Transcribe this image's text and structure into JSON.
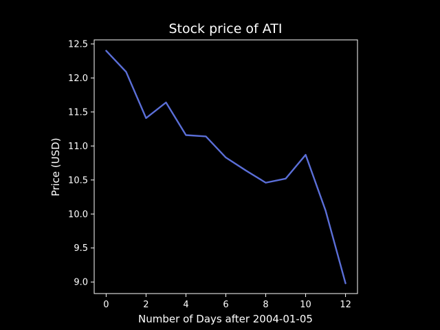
{
  "chart_data": {
    "type": "line",
    "title": "Stock price of ATI",
    "xlabel": "Number of Days after 2004-01-05",
    "ylabel": "Price (USD)",
    "x": [
      0,
      1,
      2,
      3,
      4,
      5,
      6,
      7,
      8,
      9,
      10,
      11,
      12
    ],
    "series": [
      {
        "values": [
          12.4,
          12.09,
          11.41,
          11.64,
          11.16,
          11.14,
          10.83,
          10.64,
          10.46,
          10.52,
          10.87,
          10.05,
          8.98
        ],
        "color": "#5b6fd8"
      }
    ],
    "xlim": [
      -0.6,
      12.6
    ],
    "ylim": [
      8.83,
      12.56
    ],
    "xticks": [
      0,
      2,
      4,
      6,
      8,
      10,
      12
    ],
    "yticks": [
      9.0,
      9.5,
      10.0,
      10.5,
      11.0,
      11.5,
      12.0,
      12.5
    ],
    "grid": false,
    "background": "#000000",
    "text_color": "#ffffff"
  }
}
